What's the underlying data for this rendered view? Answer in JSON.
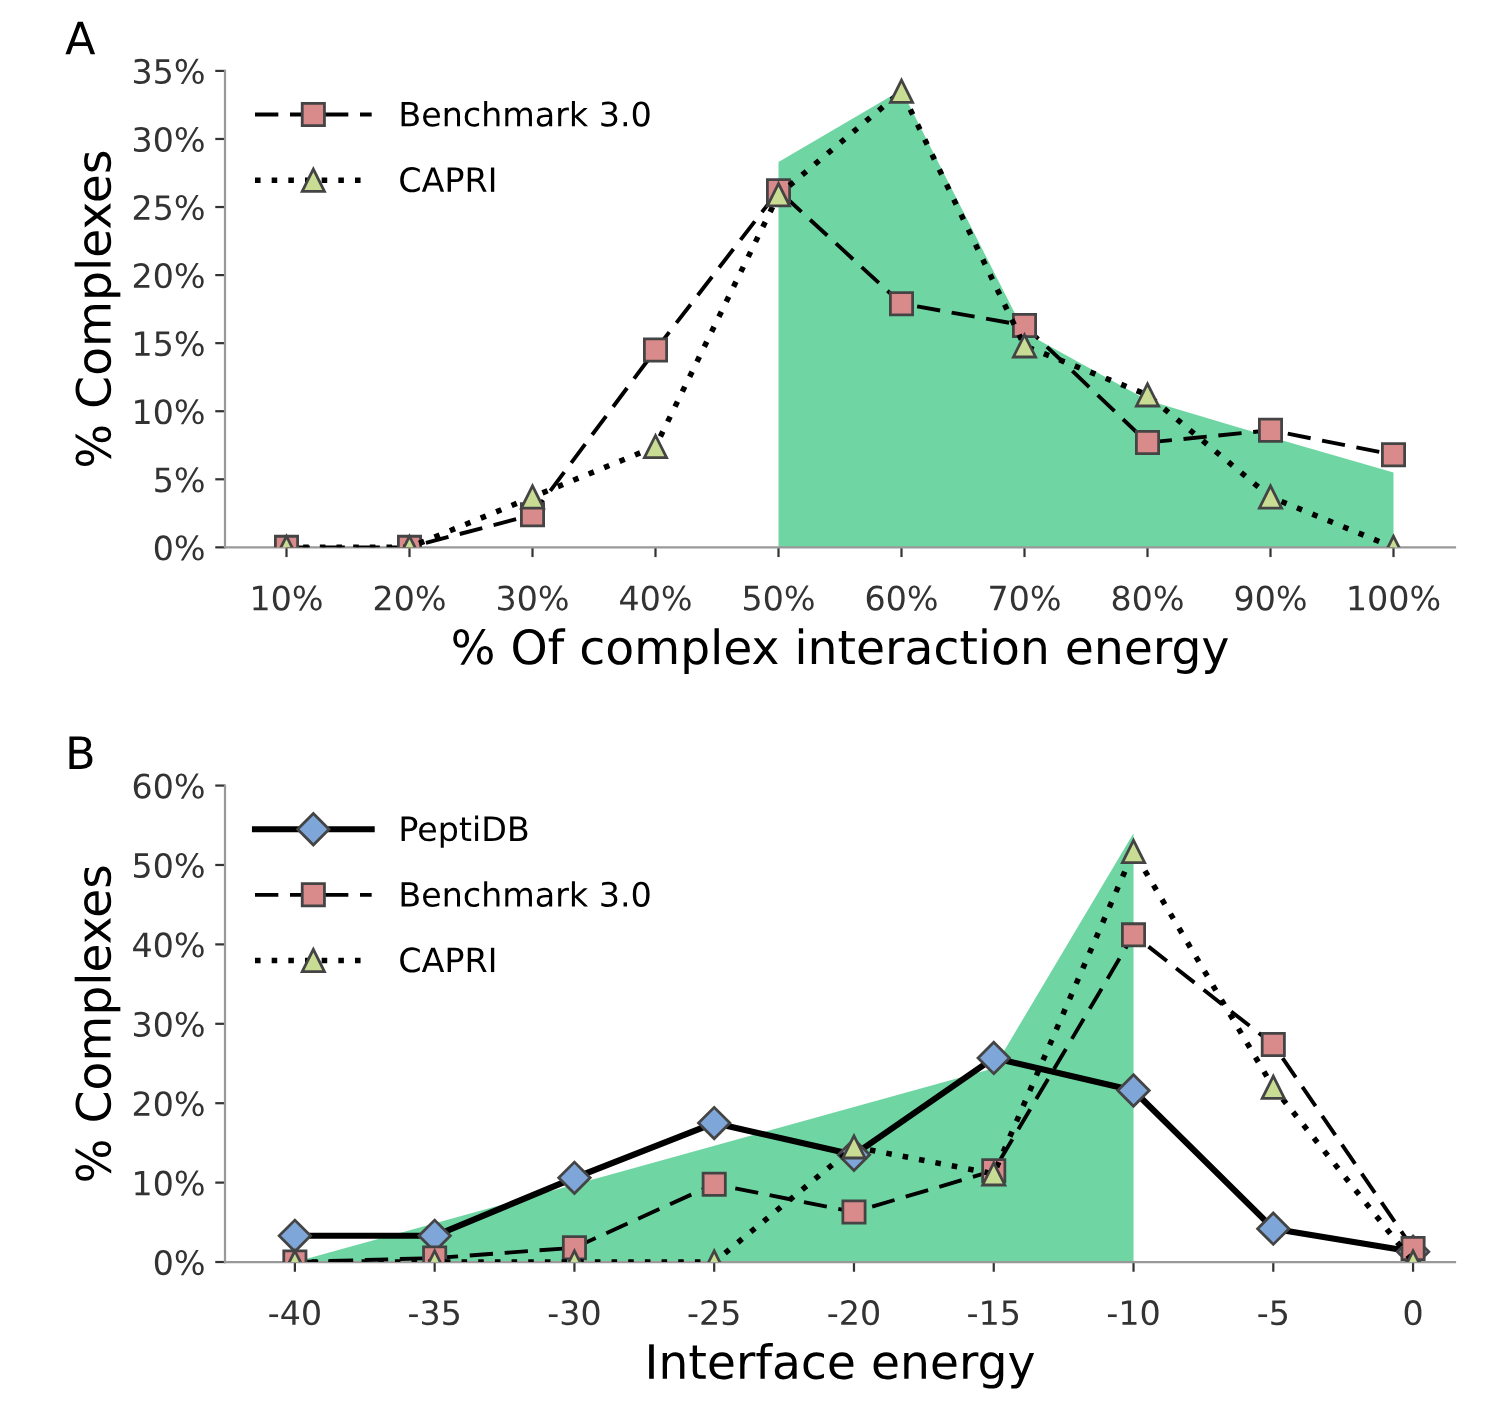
{
  "chart_data": [
    {
      "type": "line",
      "title": "A",
      "xlabel": "% Of complex interaction energy",
      "ylabel": "% Complexes",
      "categories": [
        "10%",
        "20%",
        "30%",
        "40%",
        "50%",
        "60%",
        "70%",
        "80%",
        "90%",
        "100%"
      ],
      "ylim": [
        0,
        35
      ],
      "yticks": [
        {
          "value": 0,
          "label": "0%"
        },
        {
          "value": 5,
          "label": "5%"
        },
        {
          "value": 10,
          "label": "10%"
        },
        {
          "value": 15,
          "label": "15%"
        },
        {
          "value": 20,
          "label": "20%"
        },
        {
          "value": 25,
          "label": "25%"
        },
        {
          "value": 30,
          "label": "30%"
        },
        {
          "value": 35,
          "label": "35%"
        }
      ],
      "legend": "top left",
      "grid": false,
      "series": [
        {
          "type": "area",
          "color": "#6fd6a3",
          "values": [
            null,
            null,
            null,
            null,
            28.3,
            33.6,
            15.8,
            10.8,
            8.1,
            5.5
          ]
        },
        {
          "name": "Benchmark 3.0",
          "color": "#d98a8a",
          "marker": "square",
          "line_style": "dashed",
          "values": [
            0,
            0,
            2.4,
            14.5,
            26.2,
            17.9,
            16.3,
            7.7,
            8.6,
            6.8
          ]
        },
        {
          "name": "CAPRI",
          "color": "#c9dc94",
          "marker": "triangle",
          "line_style": "dotted",
          "values": [
            0,
            0,
            3.7,
            7.4,
            25.9,
            33.5,
            14.8,
            11.2,
            3.7,
            0
          ]
        }
      ]
    },
    {
      "type": "line",
      "title": "B",
      "xlabel": "Interface energy",
      "ylabel": "% Complexes",
      "x": [
        -40,
        -35,
        -30,
        -25,
        -20,
        -15,
        -10,
        -5,
        0
      ],
      "xlim": [
        -42.5,
        1.5
      ],
      "xticks": [
        -40,
        -35,
        -30,
        -25,
        -20,
        -15,
        -10,
        -5,
        0
      ],
      "ylim": [
        0,
        60
      ],
      "yticks": [
        {
          "value": 0,
          "label": "0%"
        },
        {
          "value": 10,
          "label": "10%"
        },
        {
          "value": 20,
          "label": "20%"
        },
        {
          "value": 30,
          "label": "30%"
        },
        {
          "value": 40,
          "label": "40%"
        },
        {
          "value": 50,
          "label": "50%"
        },
        {
          "value": 60,
          "label": "60%"
        }
      ],
      "legend": "top left",
      "grid": false,
      "series": [
        {
          "type": "area",
          "color": "#6fd6a3",
          "x": [
            -40,
            -15,
            -10
          ],
          "values": [
            0,
            24.4,
            54
          ]
        },
        {
          "name": "PeptiDB",
          "color": "#7ea6d8",
          "marker": "diamond",
          "line_style": "solid",
          "values": [
            3.3,
            3.3,
            10.6,
            17.5,
            13.5,
            25.7,
            21.6,
            4.2,
            1.3
          ]
        },
        {
          "name": "Benchmark 3.0",
          "color": "#d98a8a",
          "marker": "square",
          "line_style": "dashed",
          "values": [
            0,
            0.5,
            1.8,
            9.8,
            6.3,
            11.5,
            41.2,
            27.4,
            1.7
          ]
        },
        {
          "name": "CAPRI",
          "color": "#c9dc94",
          "marker": "triangle",
          "line_style": "dotted",
          "values": [
            0,
            0,
            0,
            0,
            14.5,
            11.1,
            51.7,
            22.0,
            0
          ]
        }
      ]
    }
  ]
}
